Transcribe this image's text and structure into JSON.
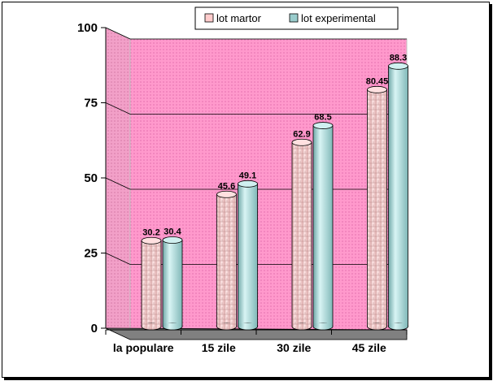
{
  "chart_data": {
    "type": "bar",
    "title": "",
    "xlabel": "",
    "ylabel": "",
    "categories": [
      "la populare",
      "15 zile",
      "30 zile",
      "45 zile"
    ],
    "series": [
      {
        "name": "lot martor",
        "values": [
          30.2,
          45.6,
          62.9,
          80.45
        ]
      },
      {
        "name": "lot experimental",
        "values": [
          30.4,
          49.1,
          68.5,
          88.3
        ]
      }
    ],
    "value_labels": [
      [
        "30.2",
        "45.6",
        "62.9",
        "80.45"
      ],
      [
        "30.4",
        "49.1",
        "68.5",
        "88.3"
      ]
    ],
    "ylim": [
      0,
      100
    ],
    "yticks": [
      "0",
      "25",
      "50",
      "75",
      "100"
    ],
    "grid": true,
    "style": "3d-cylinder",
    "legend_position": "top",
    "colors": {
      "wall": "#ff99cc",
      "floor": "#808080",
      "series": [
        "#ffcccc",
        "#99cccc"
      ],
      "frame": "#000000"
    }
  }
}
